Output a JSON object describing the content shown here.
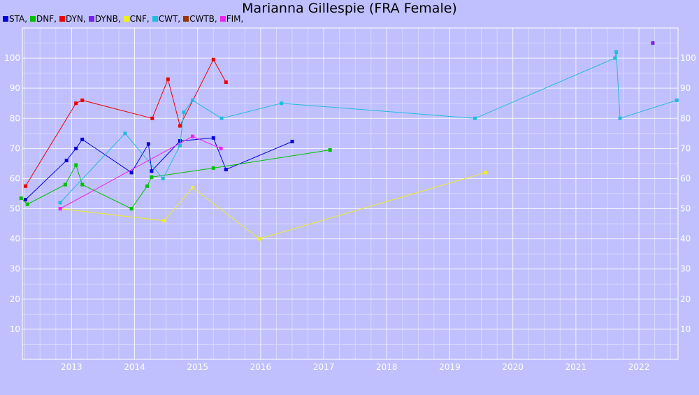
{
  "chart_data": {
    "type": "line",
    "title": "Marianna Gillespie (FRA Female)",
    "xlabel": "",
    "ylabel": "",
    "xlim": [
      2012.22,
      2022.62
    ],
    "ylim": [
      0,
      110
    ],
    "x_ticks": [
      2013,
      2014,
      2015,
      2016,
      2017,
      2018,
      2019,
      2020,
      2021,
      2022
    ],
    "y_ticks": [
      10,
      20,
      30,
      40,
      50,
      60,
      70,
      80,
      90,
      100
    ],
    "grid": true,
    "legend_position": "top-left",
    "series": [
      {
        "name": "STA",
        "color": "#0000dd",
        "points": [
          [
            2012.27,
            53
          ],
          [
            2012.92,
            66
          ],
          [
            2013.07,
            70
          ],
          [
            2013.17,
            73
          ],
          [
            2013.95,
            62
          ],
          [
            2014.22,
            71.5
          ],
          [
            2014.27,
            62.5
          ],
          [
            2014.72,
            72.5
          ],
          [
            2015.25,
            73.5
          ],
          [
            2015.45,
            63
          ],
          [
            2016.5,
            72.3
          ]
        ]
      },
      {
        "name": "DNF",
        "color": "#00c000",
        "points": [
          [
            2012.2,
            53.5
          ],
          [
            2012.3,
            51.5
          ],
          [
            2012.9,
            58
          ],
          [
            2013.07,
            64.5
          ],
          [
            2013.17,
            58
          ],
          [
            2013.95,
            50
          ],
          [
            2014.2,
            57.5
          ],
          [
            2014.27,
            60.5
          ],
          [
            2015.25,
            63.5
          ],
          [
            2017.1,
            69.5
          ]
        ]
      },
      {
        "name": "DYN",
        "color": "#ee0000",
        "points": [
          [
            2012.27,
            57.5
          ],
          [
            2013.07,
            85
          ],
          [
            2013.17,
            86
          ],
          [
            2014.28,
            80
          ],
          [
            2014.53,
            93
          ],
          [
            2014.72,
            77.5
          ],
          [
            2015.25,
            99.5
          ],
          [
            2015.45,
            92
          ]
        ]
      },
      {
        "name": "DYNB",
        "color": "#7722ee",
        "points": [
          [
            2022.22,
            105
          ]
        ]
      },
      {
        "name": "CNF",
        "color": "#eeee22",
        "points": [
          [
            2012.82,
            50
          ],
          [
            2014.47,
            46
          ],
          [
            2014.92,
            57
          ],
          [
            2015.98,
            40
          ],
          [
            2019.57,
            62
          ]
        ]
      },
      {
        "name": "CWT",
        "color": "#22bbdd",
        "points": [
          [
            2012.82,
            52
          ],
          [
            2013.85,
            75
          ],
          [
            2014.45,
            60
          ],
          [
            2014.72,
            71
          ],
          [
            2014.78,
            82
          ],
          [
            2014.92,
            86
          ],
          [
            2015.38,
            80
          ],
          [
            2016.33,
            85
          ],
          [
            2019.4,
            80
          ],
          [
            2021.62,
            100
          ],
          [
            2021.64,
            102
          ],
          [
            2021.7,
            80
          ],
          [
            2022.6,
            86
          ]
        ]
      },
      {
        "name": "CWTB",
        "color": "#993300",
        "points": []
      },
      {
        "name": "FIM",
        "color": "#ee22ee",
        "points": [
          [
            2012.82,
            50
          ],
          [
            2014.92,
            74
          ],
          [
            2015.37,
            70
          ]
        ]
      }
    ]
  }
}
